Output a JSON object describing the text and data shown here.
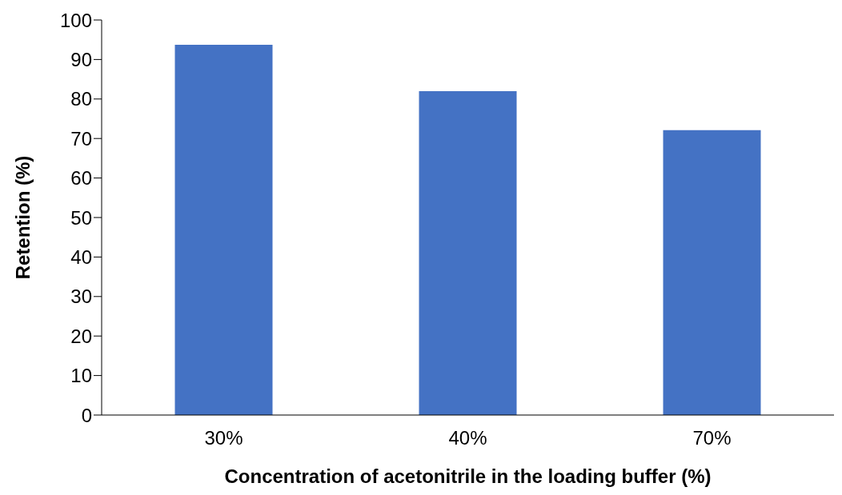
{
  "chart_data": {
    "type": "bar",
    "xlabel": "Concentration of acetonitrile in the loading buffer (%)",
    "ylabel": "Retention (%)",
    "categories": [
      "30%",
      "40%",
      "70%"
    ],
    "values": [
      93.7,
      82,
      72.1
    ],
    "color": "#4472c4",
    "ylim": [
      0,
      100
    ],
    "yticks": [
      0,
      10,
      20,
      30,
      40,
      50,
      60,
      70,
      80,
      90,
      100
    ],
    "grid": false,
    "legend": false
  }
}
